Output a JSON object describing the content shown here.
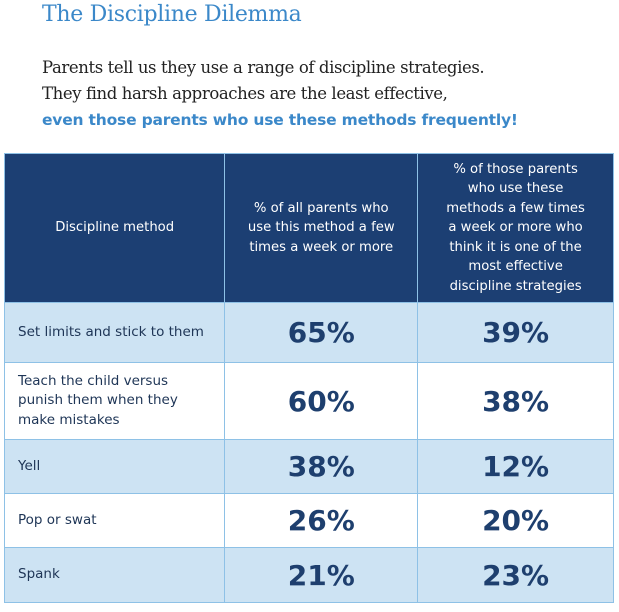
{
  "title": "The Discipline Dilemma",
  "intro": {
    "line1": "Parents tell us they use a range of discipline strategies.",
    "line2": "They find harsh approaches are the least effective,",
    "highlight": "even those parents who use these methods frequently!"
  },
  "colors": {
    "accent": "#3b88c9",
    "header_bg": "#1c3f73",
    "row_shade": "#cde3f3",
    "value_text": "#1e3f6e"
  },
  "chart_data": {
    "type": "table",
    "columns": [
      "Discipline method",
      "% of all parents who use this method a few times a week or more",
      "% of those parents who use these methods a few times a week or more who think it is one of the most effective discipline strategies"
    ],
    "rows": [
      {
        "method": "Set limits and stick to them",
        "use": "65%",
        "effective": "39%"
      },
      {
        "method": "Teach the child versus punish them when they make mistakes",
        "use": "60%",
        "effective": "38%"
      },
      {
        "method": "Yell",
        "use": "38%",
        "effective": "12%"
      },
      {
        "method": "Pop or swat",
        "use": "26%",
        "effective": "20%"
      },
      {
        "method": "Spank",
        "use": "21%",
        "effective": "23%"
      }
    ]
  }
}
